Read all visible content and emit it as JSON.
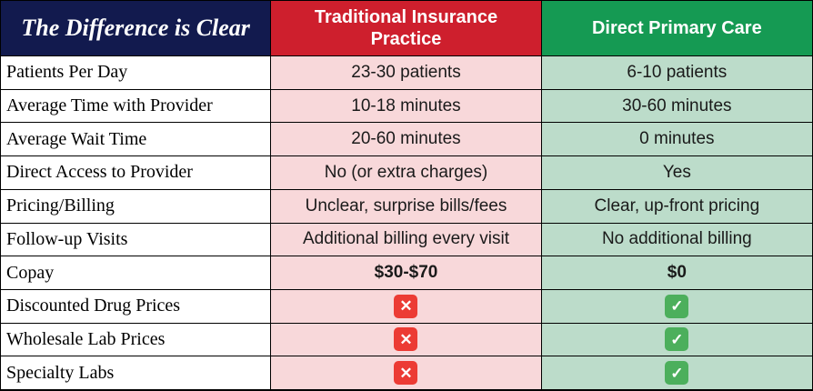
{
  "table": {
    "header": {
      "title": "The Difference is Clear",
      "traditional": "Traditional Insurance Practice",
      "dpc": "Direct Primary Care"
    },
    "rows": [
      {
        "label": "Patients Per Day",
        "traditional": "23-30 patients",
        "dpc": "6-10 patients",
        "style": "text"
      },
      {
        "label": "Average Time with Provider",
        "traditional": "10-18 minutes",
        "dpc": "30-60 minutes",
        "style": "text"
      },
      {
        "label": "Average Wait Time",
        "traditional": "20-60 minutes",
        "dpc": "0 minutes",
        "style": "text"
      },
      {
        "label": "Direct Access to Provider",
        "traditional": "No (or extra charges)",
        "dpc": "Yes",
        "style": "text"
      },
      {
        "label": "Pricing/Billing",
        "traditional": "Unclear, surprise bills/fees",
        "dpc": "Clear, up-front pricing",
        "style": "text"
      },
      {
        "label": "Follow-up Visits",
        "traditional": "Additional billing every visit",
        "dpc": "No additional billing",
        "style": "text"
      },
      {
        "label": "Copay",
        "traditional": "$30-$70",
        "dpc": "$0",
        "style": "bold"
      },
      {
        "label": "Discounted Drug Prices",
        "traditional": "cross-icon",
        "dpc": "check-icon",
        "style": "icon"
      },
      {
        "label": "Wholesale Lab Prices",
        "traditional": "cross-icon",
        "dpc": "check-icon",
        "style": "icon"
      },
      {
        "label": "Specialty Labs",
        "traditional": "cross-icon",
        "dpc": "check-icon",
        "style": "icon"
      }
    ],
    "icons": {
      "cross": "✕",
      "check": "✓"
    },
    "colors": {
      "header_navy": "#121a4e",
      "header_red": "#ce1f2d",
      "header_green": "#159a53",
      "cell_pink": "#f8d8da",
      "cell_light_green": "#bcdcca",
      "icon_cross_red": "#ec3b34",
      "icon_check_green": "#4caf5c"
    }
  },
  "chart_data": {
    "type": "table",
    "title": "The Difference is Clear",
    "columns": [
      "",
      "Traditional Insurance Practice",
      "Direct Primary Care"
    ],
    "rows": [
      [
        "Patients Per Day",
        "23-30 patients",
        "6-10 patients"
      ],
      [
        "Average Time with Provider",
        "10-18 minutes",
        "30-60 minutes"
      ],
      [
        "Average Wait Time",
        "20-60 minutes",
        "0 minutes"
      ],
      [
        "Direct Access to Provider",
        "No (or extra charges)",
        "Yes"
      ],
      [
        "Pricing/Billing",
        "Unclear, surprise bills/fees",
        "Clear, up-front pricing"
      ],
      [
        "Follow-up Visits",
        "Additional billing every visit",
        "No additional billing"
      ],
      [
        "Copay",
        "$30-$70",
        "$0"
      ],
      [
        "Discounted Drug Prices",
        "no",
        "yes"
      ],
      [
        "Wholesale Lab Prices",
        "no",
        "yes"
      ],
      [
        "Specialty Labs",
        "no",
        "yes"
      ]
    ],
    "legend_position": "none",
    "grid": true
  }
}
